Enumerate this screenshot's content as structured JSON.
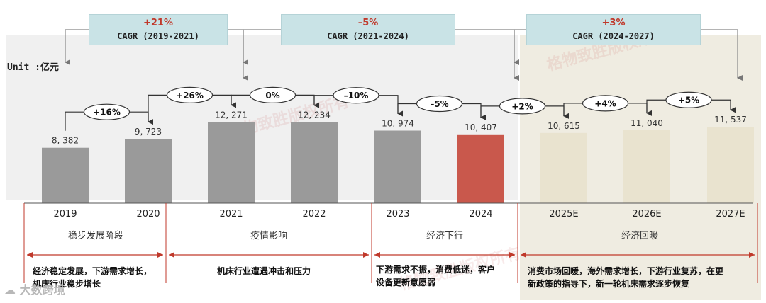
{
  "unit_label": "Unit :亿元",
  "cagr_boxes": [
    {
      "pct": "+21%",
      "label": "CAGR (2019-2021)"
    },
    {
      "pct": "–5%",
      "label": "CAGR (2021-2024)"
    },
    {
      "pct": "+3%",
      "label": "CAGR (2024-2027)"
    }
  ],
  "phases": [
    {
      "label": "稳步发展阶段",
      "desc": [
        "经济稳定发展，下游需求增长，",
        "机床行业稳步增长"
      ]
    },
    {
      "label": "疫情影响",
      "desc": [
        "机床行业遭遇冲击和压力"
      ]
    },
    {
      "label": "经济下行",
      "desc": [
        "下游需求不振，消费低迷，客户",
        "设备更新意愿弱"
      ]
    },
    {
      "label": "经济回暖",
      "desc": [
        "消费市场回暖，海外需求增长，下游行业复苏，在更",
        "新政策的指导下，新一轮机床需求逐步恢复"
      ]
    }
  ],
  "watermark": "格物致胜版权所有",
  "logo_text": "大数跨境",
  "colors": {
    "bar": "#9a9a9a",
    "highlight": "#c9584c",
    "forecast": "#e9e3cf",
    "phase_line": "#c0392b",
    "cagr_box": "#c9e3e6"
  },
  "chart_data": {
    "type": "bar",
    "categories": [
      "2019",
      "2020",
      "2021",
      "2022",
      "2023",
      "2024",
      "2025E",
      "2026E",
      "2027E"
    ],
    "values": [
      8382,
      9723,
      12271,
      12234,
      10974,
      10407,
      10615,
      11040,
      11537
    ],
    "value_labels": [
      "8, 382",
      "9, 723",
      "12, 271",
      "12, 234",
      "10, 974",
      "10, 407",
      "10, 615",
      "11, 040",
      "11, 537"
    ],
    "growth_labels": [
      "+16%",
      "+26%",
      "0%",
      "–10%",
      "–5%",
      "+2%",
      "+4%",
      "+5%"
    ],
    "highlight_index": 5,
    "forecast_start_index": 6
  }
}
